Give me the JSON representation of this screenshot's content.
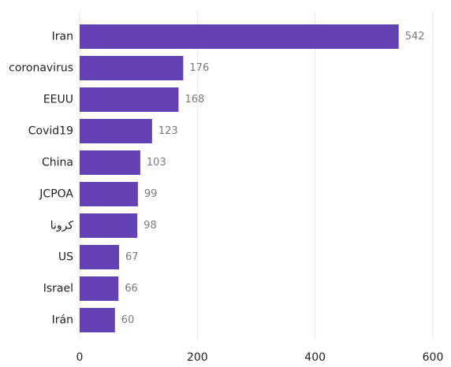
{
  "chart_data": {
    "type": "bar",
    "orientation": "horizontal",
    "categories": [
      "Iran",
      "coronavirus",
      "EEUU",
      "Covid19",
      "China",
      "JCPOA",
      "کرونا",
      "US",
      "Israel",
      "Irán"
    ],
    "values": [
      542,
      176,
      168,
      123,
      103,
      99,
      98,
      67,
      66,
      60
    ],
    "xlim": [
      0,
      600
    ],
    "xticks": [
      0,
      200,
      400,
      600
    ],
    "grid": "vertical",
    "bar_color": "#6441b5",
    "value_label_color": "#7a7a7a"
  }
}
